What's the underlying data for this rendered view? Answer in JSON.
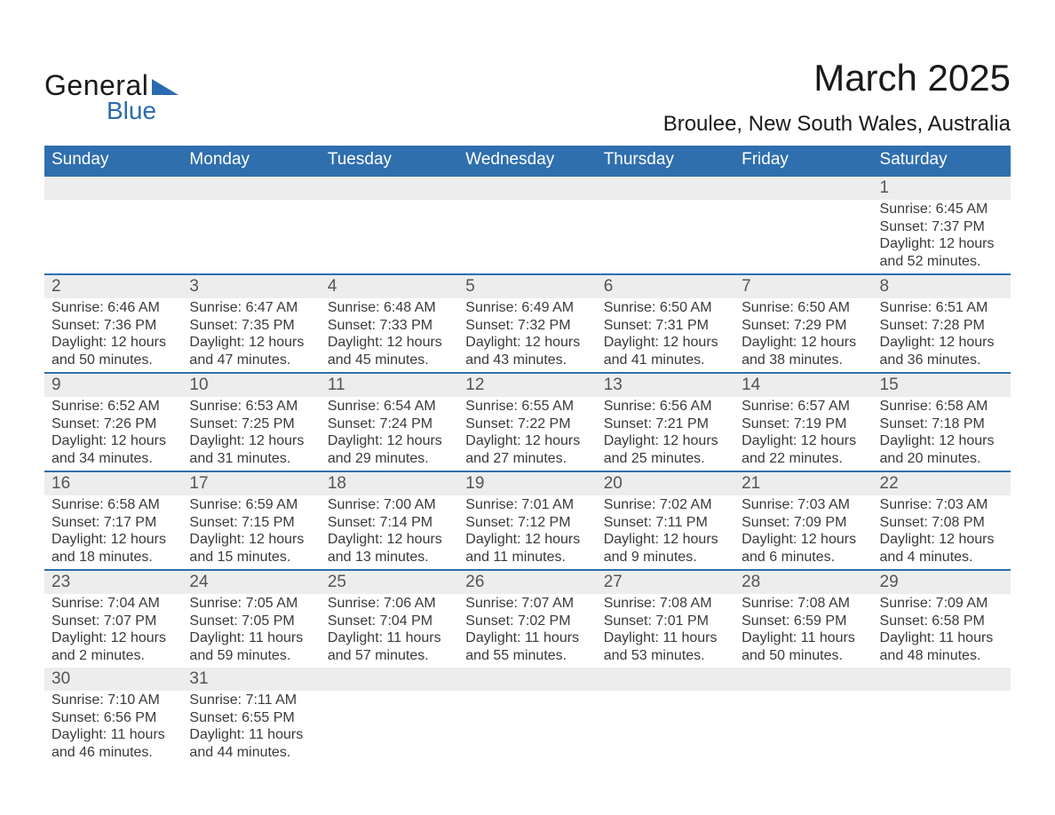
{
  "logo": {
    "text_general": "General",
    "text_blue": "Blue",
    "shape_color": "#2a6bb0"
  },
  "title": "March 2025",
  "location": "Broulee, New South Wales, Australia",
  "styling": {
    "header_bg": "#2f6fae",
    "header_text_color": "#ffffff",
    "daynum_bg": "#ededed",
    "row_border_color": "#2f6fae",
    "body_text_color": "#3a3a3a",
    "page_bg": "#ffffff",
    "title_fontsize": 42,
    "location_fontsize": 24,
    "header_fontsize": 19,
    "daynum_fontsize": 19,
    "data_fontsize": 16
  },
  "calendar": {
    "type": "table",
    "day_headers": [
      "Sunday",
      "Monday",
      "Tuesday",
      "Wednesday",
      "Thursday",
      "Friday",
      "Saturday"
    ],
    "labels": {
      "sunrise": "Sunrise",
      "sunset": "Sunset",
      "daylight": "Daylight"
    },
    "weeks": [
      [
        null,
        null,
        null,
        null,
        null,
        null,
        {
          "n": "1",
          "sunrise": "6:45 AM",
          "sunset": "7:37 PM",
          "daylight": "12 hours and 52 minutes."
        }
      ],
      [
        {
          "n": "2",
          "sunrise": "6:46 AM",
          "sunset": "7:36 PM",
          "daylight": "12 hours and 50 minutes."
        },
        {
          "n": "3",
          "sunrise": "6:47 AM",
          "sunset": "7:35 PM",
          "daylight": "12 hours and 47 minutes."
        },
        {
          "n": "4",
          "sunrise": "6:48 AM",
          "sunset": "7:33 PM",
          "daylight": "12 hours and 45 minutes."
        },
        {
          "n": "5",
          "sunrise": "6:49 AM",
          "sunset": "7:32 PM",
          "daylight": "12 hours and 43 minutes."
        },
        {
          "n": "6",
          "sunrise": "6:50 AM",
          "sunset": "7:31 PM",
          "daylight": "12 hours and 41 minutes."
        },
        {
          "n": "7",
          "sunrise": "6:50 AM",
          "sunset": "7:29 PM",
          "daylight": "12 hours and 38 minutes."
        },
        {
          "n": "8",
          "sunrise": "6:51 AM",
          "sunset": "7:28 PM",
          "daylight": "12 hours and 36 minutes."
        }
      ],
      [
        {
          "n": "9",
          "sunrise": "6:52 AM",
          "sunset": "7:26 PM",
          "daylight": "12 hours and 34 minutes."
        },
        {
          "n": "10",
          "sunrise": "6:53 AM",
          "sunset": "7:25 PM",
          "daylight": "12 hours and 31 minutes."
        },
        {
          "n": "11",
          "sunrise": "6:54 AM",
          "sunset": "7:24 PM",
          "daylight": "12 hours and 29 minutes."
        },
        {
          "n": "12",
          "sunrise": "6:55 AM",
          "sunset": "7:22 PM",
          "daylight": "12 hours and 27 minutes."
        },
        {
          "n": "13",
          "sunrise": "6:56 AM",
          "sunset": "7:21 PM",
          "daylight": "12 hours and 25 minutes."
        },
        {
          "n": "14",
          "sunrise": "6:57 AM",
          "sunset": "7:19 PM",
          "daylight": "12 hours and 22 minutes."
        },
        {
          "n": "15",
          "sunrise": "6:58 AM",
          "sunset": "7:18 PM",
          "daylight": "12 hours and 20 minutes."
        }
      ],
      [
        {
          "n": "16",
          "sunrise": "6:58 AM",
          "sunset": "7:17 PM",
          "daylight": "12 hours and 18 minutes."
        },
        {
          "n": "17",
          "sunrise": "6:59 AM",
          "sunset": "7:15 PM",
          "daylight": "12 hours and 15 minutes."
        },
        {
          "n": "18",
          "sunrise": "7:00 AM",
          "sunset": "7:14 PM",
          "daylight": "12 hours and 13 minutes."
        },
        {
          "n": "19",
          "sunrise": "7:01 AM",
          "sunset": "7:12 PM",
          "daylight": "12 hours and 11 minutes."
        },
        {
          "n": "20",
          "sunrise": "7:02 AM",
          "sunset": "7:11 PM",
          "daylight": "12 hours and 9 minutes."
        },
        {
          "n": "21",
          "sunrise": "7:03 AM",
          "sunset": "7:09 PM",
          "daylight": "12 hours and 6 minutes."
        },
        {
          "n": "22",
          "sunrise": "7:03 AM",
          "sunset": "7:08 PM",
          "daylight": "12 hours and 4 minutes."
        }
      ],
      [
        {
          "n": "23",
          "sunrise": "7:04 AM",
          "sunset": "7:07 PM",
          "daylight": "12 hours and 2 minutes."
        },
        {
          "n": "24",
          "sunrise": "7:05 AM",
          "sunset": "7:05 PM",
          "daylight": "11 hours and 59 minutes."
        },
        {
          "n": "25",
          "sunrise": "7:06 AM",
          "sunset": "7:04 PM",
          "daylight": "11 hours and 57 minutes."
        },
        {
          "n": "26",
          "sunrise": "7:07 AM",
          "sunset": "7:02 PM",
          "daylight": "11 hours and 55 minutes."
        },
        {
          "n": "27",
          "sunrise": "7:08 AM",
          "sunset": "7:01 PM",
          "daylight": "11 hours and 53 minutes."
        },
        {
          "n": "28",
          "sunrise": "7:08 AM",
          "sunset": "6:59 PM",
          "daylight": "11 hours and 50 minutes."
        },
        {
          "n": "29",
          "sunrise": "7:09 AM",
          "sunset": "6:58 PM",
          "daylight": "11 hours and 48 minutes."
        }
      ],
      [
        {
          "n": "30",
          "sunrise": "7:10 AM",
          "sunset": "6:56 PM",
          "daylight": "11 hours and 46 minutes."
        },
        {
          "n": "31",
          "sunrise": "7:11 AM",
          "sunset": "6:55 PM",
          "daylight": "11 hours and 44 minutes."
        },
        null,
        null,
        null,
        null,
        null
      ]
    ]
  }
}
